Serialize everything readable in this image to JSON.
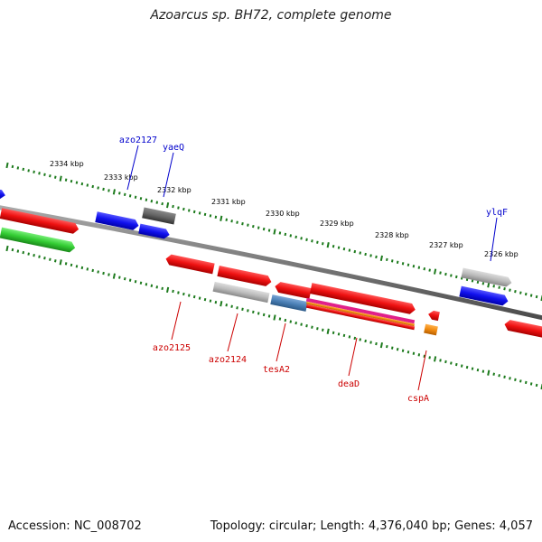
{
  "title": "Azoarcus sp. BH72, complete genome",
  "footer": {
    "accession": "Accession: NC_008702",
    "summary": "Topology: circular; Length: 4,376,040 bp; Genes: 4,057"
  },
  "scale": {
    "unit_label_suffix": " kbp",
    "ticks_kbp": [
      2334,
      2333,
      2332,
      2331,
      2330,
      2329,
      2328,
      2327,
      2326
    ]
  },
  "colors": {
    "backbone": "#7a7a7a",
    "tick_dots": "#1c7a1c",
    "upper_label": "#0000cc",
    "lower_label": "#cc0000",
    "red": "#ee1111",
    "blue": "#1111ee",
    "grey": "#bbbbbb",
    "darkgrey": "#666666",
    "green": "#33cc33",
    "steelblue": "#4a7fb5",
    "magenta": "#e0208a",
    "orange": "#f08a10"
  },
  "gene_labels": [
    {
      "name": "azo2127",
      "color": "upper_label"
    },
    {
      "name": "yaeQ",
      "color": "upper_label"
    },
    {
      "name": "ylqF",
      "color": "upper_label"
    },
    {
      "name": "azo2125",
      "color": "lower_label"
    },
    {
      "name": "azo2124",
      "color": "lower_label"
    },
    {
      "name": "tesA2",
      "color": "lower_label"
    },
    {
      "name": "deaD",
      "color": "lower_label"
    },
    {
      "name": "cspA",
      "color": "lower_label"
    }
  ]
}
